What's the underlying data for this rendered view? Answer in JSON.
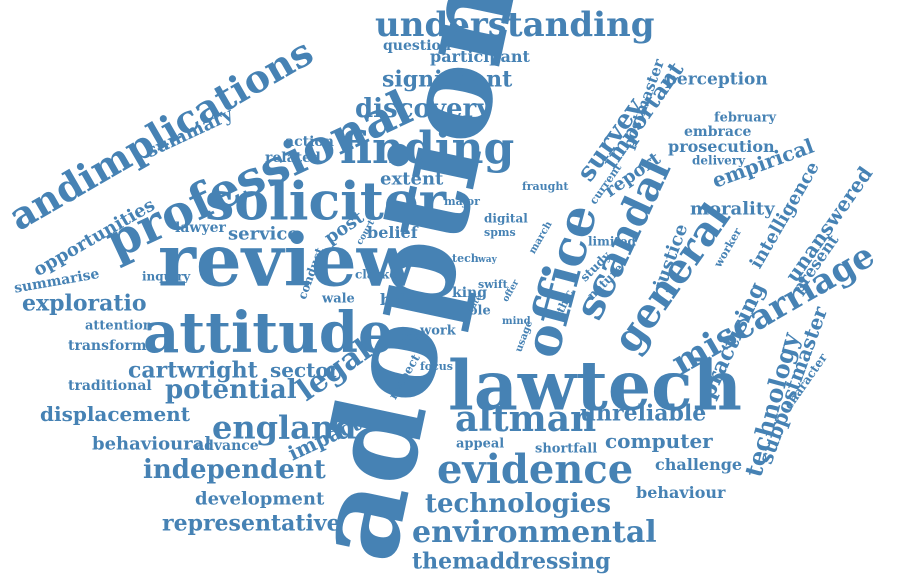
{
  "cloud": {
    "color": "#4682b4",
    "words": [
      "adoption",
      "review",
      "lawtech",
      "attitude",
      "professional",
      "solicitor",
      "finding",
      "office",
      "scandal",
      "general",
      "miscarriage",
      "evidence",
      "understanding",
      "andimplications",
      "altman",
      "environmental",
      "england",
      "independent",
      "technologies",
      "discovery",
      "significant",
      "legal",
      "themaddressing",
      "representative",
      "potential",
      "unreliable",
      "computer",
      "survey",
      "important",
      "practising",
      "subpostmaster",
      "technology",
      "empirical",
      "unanswered",
      "intelligence",
      "report",
      "justice",
      "sector",
      "cartwright",
      "displacement",
      "development",
      "behavioural",
      "impact",
      "service",
      "exploratio",
      "opportunities",
      "summary",
      "morality",
      "extent",
      "perception",
      "prosecution",
      "participant",
      "question",
      "postmaster",
      "related",
      "action",
      "lawyer",
      "post",
      "belief",
      "brian",
      "summarise",
      "transform",
      "traditional",
      "attention",
      "inquiry",
      "conduct",
      "clarke",
      "wale",
      "king",
      "role",
      "work",
      "pose",
      "respect",
      "focus",
      "appeal",
      "shortfall",
      "challenge",
      "behaviour",
      "advance",
      "present",
      "character",
      "worker",
      "nature",
      "ethic",
      "study",
      "swift",
      "mind",
      "usage",
      "offer",
      "limited",
      "march",
      "tech",
      "way",
      "digital",
      "spms",
      "major",
      "fraught",
      "current",
      "embrace",
      "february",
      "delivery",
      "court",
      "rate"
    ]
  }
}
